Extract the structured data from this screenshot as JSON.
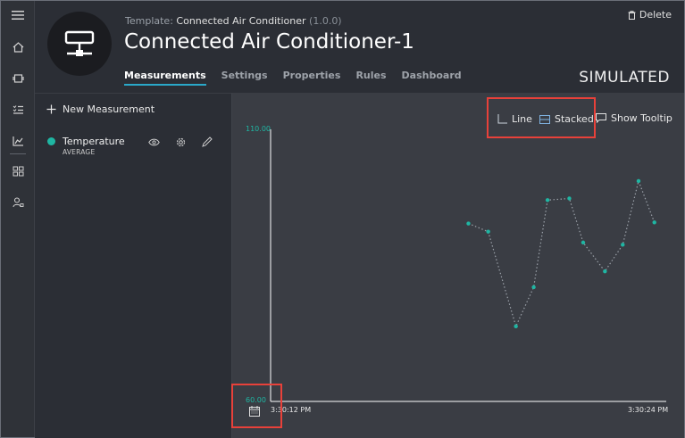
{
  "header": {
    "template_label": "Template:",
    "template_name": "Connected Air Conditioner",
    "template_version": "(1.0.0)",
    "device_title": "Connected Air Conditioner-1",
    "delete_label": "Delete",
    "status_label": "SIMULATED",
    "tabs": [
      {
        "label": "Measurements",
        "active": true
      },
      {
        "label": "Settings",
        "active": false
      },
      {
        "label": "Properties",
        "active": false
      },
      {
        "label": "Rules",
        "active": false
      },
      {
        "label": "Dashboard",
        "active": false
      }
    ]
  },
  "rail": {
    "icons": [
      "menu-icon",
      "home-icon",
      "devices-icon",
      "rules-list-icon",
      "analytics-icon",
      "dashboard-grid-icon",
      "admin-user-icon"
    ]
  },
  "measurements": {
    "new_label": "New Measurement",
    "items": [
      {
        "name": "Temperature",
        "aggregation": "AVERAGE",
        "color": "#1fb6a3"
      }
    ]
  },
  "chart_toolbar": {
    "line_label": "Line",
    "stacked_label": "Stacked",
    "tooltip_label": "Show Tooltip"
  },
  "chart_data": {
    "type": "line",
    "series": [
      {
        "name": "Temperature",
        "color": "#1fb6a3",
        "points": [
          [
            0.5,
            92.7
          ],
          [
            0.55,
            91.2
          ],
          [
            0.62,
            73.8
          ],
          [
            0.665,
            81.0
          ],
          [
            0.7,
            97.0
          ],
          [
            0.755,
            97.3
          ],
          [
            0.79,
            89.2
          ],
          [
            0.845,
            83.9
          ],
          [
            0.89,
            88.8
          ],
          [
            0.93,
            100.5
          ],
          [
            0.97,
            92.9
          ]
        ]
      }
    ],
    "ylim": [
      60,
      110
    ],
    "y_tick_labels": [
      "110.00",
      "60.00"
    ],
    "x_tick_labels": [
      "3:30:12 PM",
      "3:30:24 PM"
    ],
    "line_style": "dotted"
  },
  "colors": {
    "accent": "#2aa8c9",
    "series": "#1fb6a3",
    "highlight": "#e8413a"
  }
}
